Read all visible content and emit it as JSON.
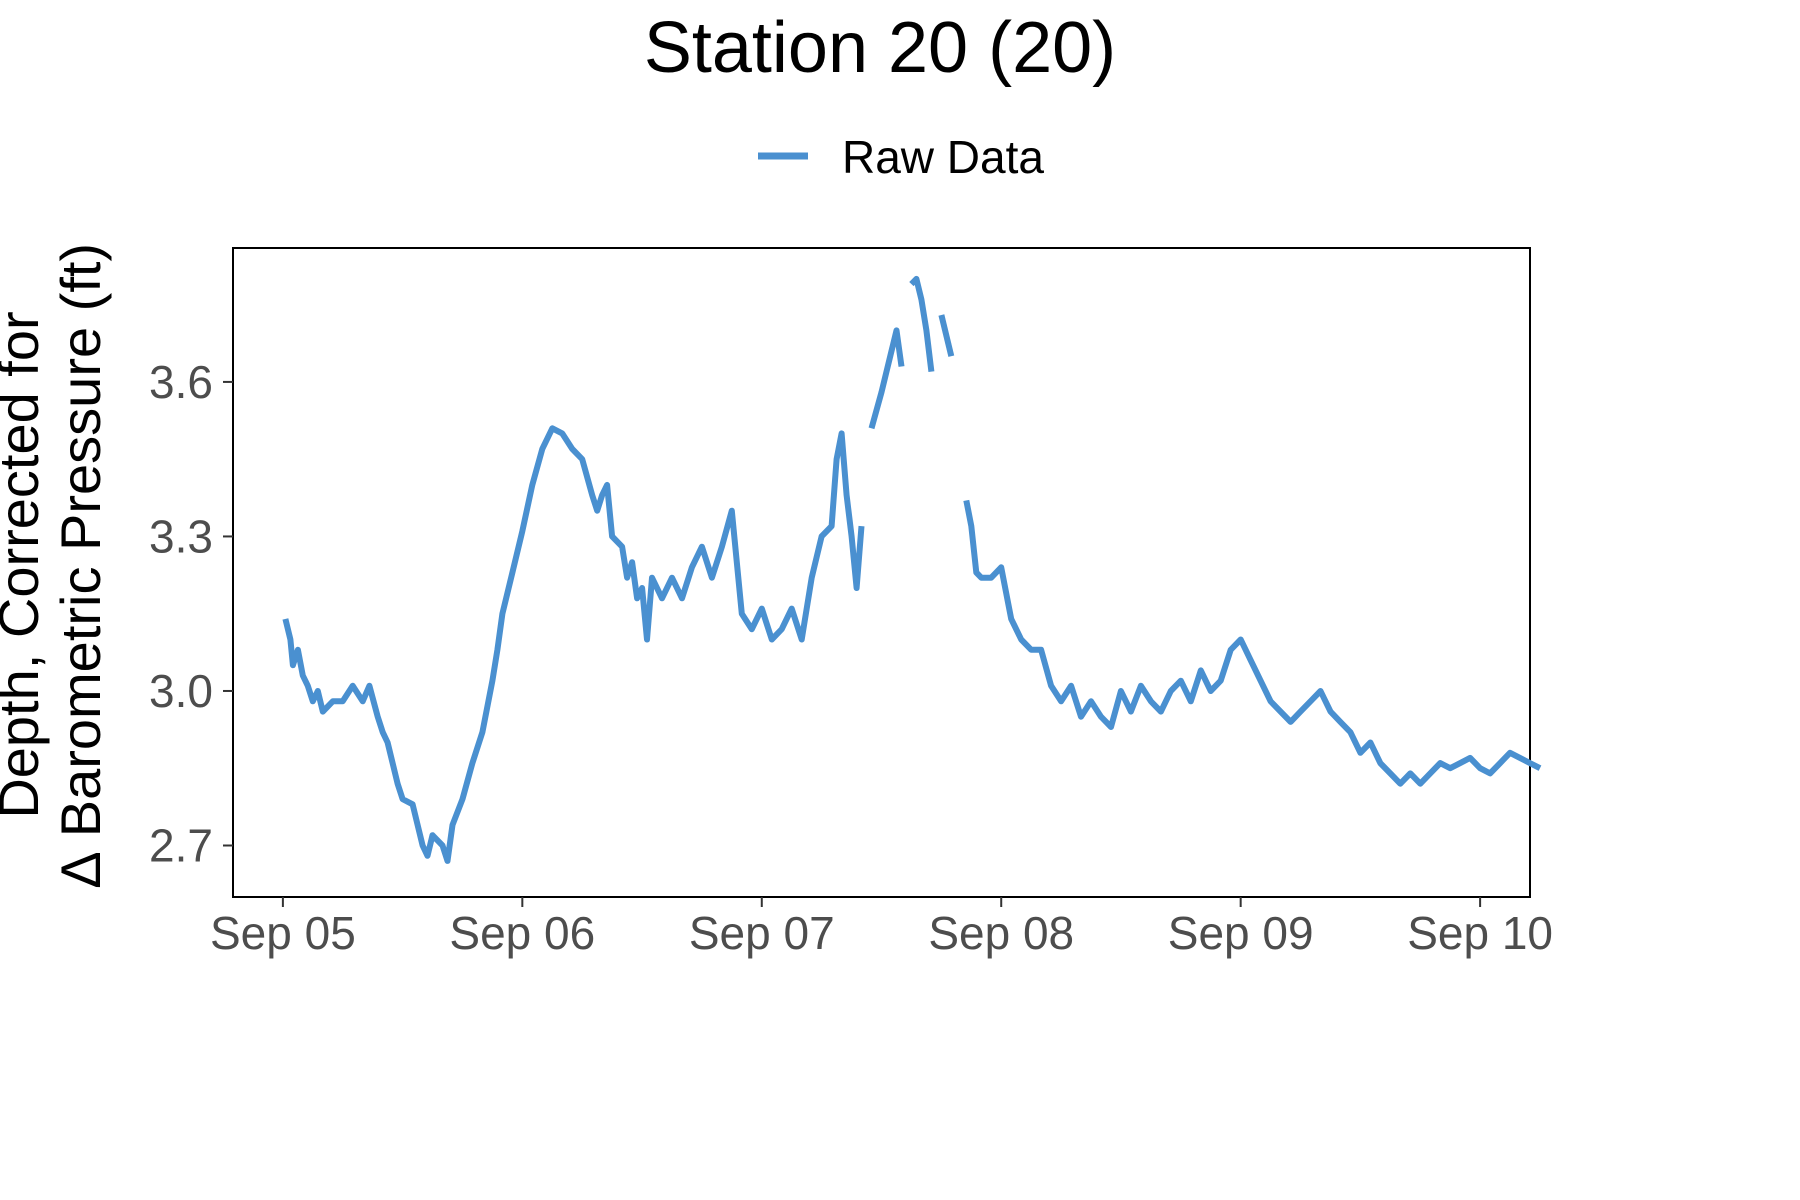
{
  "chart_data": {
    "type": "line",
    "title": "Station 20 (20)",
    "xlabel": "",
    "ylabel_lines": [
      "Depth, Corrected for",
      "∆ Barometric Pressure (ft)"
    ],
    "x_ticks": [
      "Sep 05",
      "Sep 06",
      "Sep 07",
      "Sep 08",
      "Sep 09",
      "Sep 10"
    ],
    "y_ticks": [
      2.7,
      3.0,
      3.3,
      3.6
    ],
    "x_range": [
      "2019-09-04T19:00",
      "2019-09-10T05:00"
    ],
    "y_range": [
      2.6,
      3.86
    ],
    "legend": {
      "position": "top",
      "entries": [
        "Raw Data"
      ]
    },
    "grid": false,
    "series": [
      {
        "name": "Raw Data",
        "color": "#4A90D0",
        "segments": [
          [
            [
              "2019-09-05T00:15",
              3.14
            ],
            [
              "2019-09-05T00:45",
              3.1
            ],
            [
              "2019-09-05T01:00",
              3.05
            ],
            [
              "2019-09-05T01:30",
              3.08
            ],
            [
              "2019-09-05T02:00",
              3.03
            ],
            [
              "2019-09-05T02:30",
              3.01
            ],
            [
              "2019-09-05T03:00",
              2.98
            ],
            [
              "2019-09-05T03:30",
              3.0
            ],
            [
              "2019-09-05T04:00",
              2.96
            ],
            [
              "2019-09-05T05:00",
              2.98
            ],
            [
              "2019-09-05T06:00",
              2.98
            ],
            [
              "2019-09-05T07:00",
              3.01
            ],
            [
              "2019-09-05T08:00",
              2.98
            ],
            [
              "2019-09-05T08:40",
              3.01
            ],
            [
              "2019-09-05T09:30",
              2.95
            ],
            [
              "2019-09-05T10:00",
              2.92
            ],
            [
              "2019-09-05T10:30",
              2.9
            ],
            [
              "2019-09-05T11:00",
              2.86
            ],
            [
              "2019-09-05T11:30",
              2.82
            ],
            [
              "2019-09-05T12:00",
              2.79
            ],
            [
              "2019-09-05T13:00",
              2.78
            ],
            [
              "2019-09-05T13:30",
              2.74
            ],
            [
              "2019-09-05T14:00",
              2.7
            ],
            [
              "2019-09-05T14:30",
              2.68
            ],
            [
              "2019-09-05T15:00",
              2.72
            ],
            [
              "2019-09-05T16:00",
              2.7
            ],
            [
              "2019-09-05T16:30",
              2.67
            ],
            [
              "2019-09-05T17:00",
              2.74
            ],
            [
              "2019-09-05T18:00",
              2.79
            ],
            [
              "2019-09-05T19:00",
              2.86
            ],
            [
              "2019-09-05T20:00",
              2.92
            ],
            [
              "2019-09-05T21:00",
              3.02
            ],
            [
              "2019-09-05T21:30",
              3.08
            ],
            [
              "2019-09-05T22:00",
              3.15
            ],
            [
              "2019-09-05T23:00",
              3.23
            ],
            [
              "2019-09-06T00:00",
              3.31
            ],
            [
              "2019-09-06T01:00",
              3.4
            ],
            [
              "2019-09-06T02:00",
              3.47
            ],
            [
              "2019-09-06T03:00",
              3.51
            ],
            [
              "2019-09-06T04:00",
              3.5
            ],
            [
              "2019-09-06T05:00",
              3.47
            ],
            [
              "2019-09-06T06:00",
              3.45
            ],
            [
              "2019-09-06T07:00",
              3.38
            ],
            [
              "2019-09-06T07:30",
              3.35
            ],
            [
              "2019-09-06T08:00",
              3.38
            ],
            [
              "2019-09-06T08:30",
              3.4
            ],
            [
              "2019-09-06T09:00",
              3.3
            ],
            [
              "2019-09-06T10:00",
              3.28
            ],
            [
              "2019-09-06T10:30",
              3.22
            ],
            [
              "2019-09-06T11:00",
              3.25
            ],
            [
              "2019-09-06T11:30",
              3.18
            ],
            [
              "2019-09-06T12:00",
              3.2
            ],
            [
              "2019-09-06T12:30",
              3.1
            ],
            [
              "2019-09-06T13:00",
              3.22
            ],
            [
              "2019-09-06T14:00",
              3.18
            ],
            [
              "2019-09-06T15:00",
              3.22
            ],
            [
              "2019-09-06T16:00",
              3.18
            ],
            [
              "2019-09-06T17:00",
              3.24
            ],
            [
              "2019-09-06T18:00",
              3.28
            ],
            [
              "2019-09-06T19:00",
              3.22
            ],
            [
              "2019-09-06T20:00",
              3.28
            ],
            [
              "2019-09-06T21:00",
              3.35
            ],
            [
              "2019-09-06T22:00",
              3.15
            ],
            [
              "2019-09-06T23:00",
              3.12
            ],
            [
              "2019-09-07T00:00",
              3.16
            ],
            [
              "2019-09-07T01:00",
              3.1
            ],
            [
              "2019-09-07T02:00",
              3.12
            ],
            [
              "2019-09-07T03:00",
              3.16
            ],
            [
              "2019-09-07T04:00",
              3.1
            ],
            [
              "2019-09-07T05:00",
              3.22
            ],
            [
              "2019-09-07T06:00",
              3.3
            ],
            [
              "2019-09-07T07:00",
              3.32
            ],
            [
              "2019-09-07T07:30",
              3.45
            ],
            [
              "2019-09-07T08:00",
              3.5
            ],
            [
              "2019-09-07T08:30",
              3.38
            ],
            [
              "2019-09-07T09:00",
              3.3
            ],
            [
              "2019-09-07T09:30",
              3.2
            ],
            [
              "2019-09-07T10:00",
              3.32
            ]
          ],
          [
            [
              "2019-09-07T11:00",
              3.51
            ],
            [
              "2019-09-07T12:00",
              3.58
            ],
            [
              "2019-09-07T12:30",
              3.62
            ],
            [
              "2019-09-07T13:00",
              3.66
            ],
            [
              "2019-09-07T13:30",
              3.7
            ],
            [
              "2019-09-07T14:00",
              3.63
            ]
          ],
          [
            [
              "2019-09-07T15:00",
              3.79
            ],
            [
              "2019-09-07T15:30",
              3.8
            ],
            [
              "2019-09-07T16:00",
              3.76
            ],
            [
              "2019-09-07T16:30",
              3.7
            ],
            [
              "2019-09-07T17:00",
              3.62
            ]
          ],
          [
            [
              "2019-09-07T18:00",
              3.73
            ],
            [
              "2019-09-07T19:00",
              3.65
            ]
          ],
          [
            [
              "2019-09-07T20:30",
              3.37
            ],
            [
              "2019-09-07T21:00",
              3.32
            ],
            [
              "2019-09-07T21:30",
              3.23
            ],
            [
              "2019-09-07T22:00",
              3.22
            ],
            [
              "2019-09-07T23:00",
              3.22
            ],
            [
              "2019-09-08T00:00",
              3.24
            ],
            [
              "2019-09-08T01:00",
              3.14
            ],
            [
              "2019-09-08T02:00",
              3.1
            ],
            [
              "2019-09-08T03:00",
              3.08
            ],
            [
              "2019-09-08T04:00",
              3.08
            ],
            [
              "2019-09-08T05:00",
              3.01
            ],
            [
              "2019-09-08T06:00",
              2.98
            ],
            [
              "2019-09-08T07:00",
              3.01
            ],
            [
              "2019-09-08T08:00",
              2.95
            ],
            [
              "2019-09-08T09:00",
              2.98
            ],
            [
              "2019-09-08T10:00",
              2.95
            ],
            [
              "2019-09-08T11:00",
              2.93
            ],
            [
              "2019-09-08T12:00",
              3.0
            ],
            [
              "2019-09-08T13:00",
              2.96
            ],
            [
              "2019-09-08T14:00",
              3.01
            ],
            [
              "2019-09-08T15:00",
              2.98
            ],
            [
              "2019-09-08T16:00",
              2.96
            ],
            [
              "2019-09-08T17:00",
              3.0
            ],
            [
              "2019-09-08T18:00",
              3.02
            ],
            [
              "2019-09-08T19:00",
              2.98
            ],
            [
              "2019-09-08T20:00",
              3.04
            ],
            [
              "2019-09-08T21:00",
              3.0
            ],
            [
              "2019-09-08T22:00",
              3.02
            ],
            [
              "2019-09-08T23:00",
              3.08
            ],
            [
              "2019-09-09T00:00",
              3.1
            ],
            [
              "2019-09-09T01:00",
              3.06
            ],
            [
              "2019-09-09T02:00",
              3.02
            ],
            [
              "2019-09-09T03:00",
              2.98
            ],
            [
              "2019-09-09T04:00",
              2.96
            ],
            [
              "2019-09-09T05:00",
              2.94
            ],
            [
              "2019-09-09T06:00",
              2.96
            ],
            [
              "2019-09-09T07:00",
              2.98
            ],
            [
              "2019-09-09T08:00",
              3.0
            ],
            [
              "2019-09-09T09:00",
              2.96
            ],
            [
              "2019-09-09T10:00",
              2.94
            ],
            [
              "2019-09-09T11:00",
              2.92
            ],
            [
              "2019-09-09T12:00",
              2.88
            ],
            [
              "2019-09-09T13:00",
              2.9
            ],
            [
              "2019-09-09T14:00",
              2.86
            ],
            [
              "2019-09-09T15:00",
              2.84
            ],
            [
              "2019-09-09T16:00",
              2.82
            ],
            [
              "2019-09-09T17:00",
              2.84
            ],
            [
              "2019-09-09T18:00",
              2.82
            ],
            [
              "2019-09-09T19:00",
              2.84
            ],
            [
              "2019-09-09T20:00",
              2.86
            ],
            [
              "2019-09-09T21:00",
              2.85
            ],
            [
              "2019-09-09T22:00",
              2.86
            ],
            [
              "2019-09-09T23:00",
              2.87
            ],
            [
              "2019-09-10T00:00",
              2.85
            ],
            [
              "2019-09-10T01:00",
              2.84
            ],
            [
              "2019-09-10T02:00",
              2.86
            ],
            [
              "2019-09-10T03:00",
              2.88
            ],
            [
              "2019-09-10T04:00",
              2.87
            ],
            [
              "2019-09-10T05:00",
              2.86
            ],
            [
              "2019-09-10T06:00",
              2.85
            ]
          ]
        ]
      }
    ]
  }
}
